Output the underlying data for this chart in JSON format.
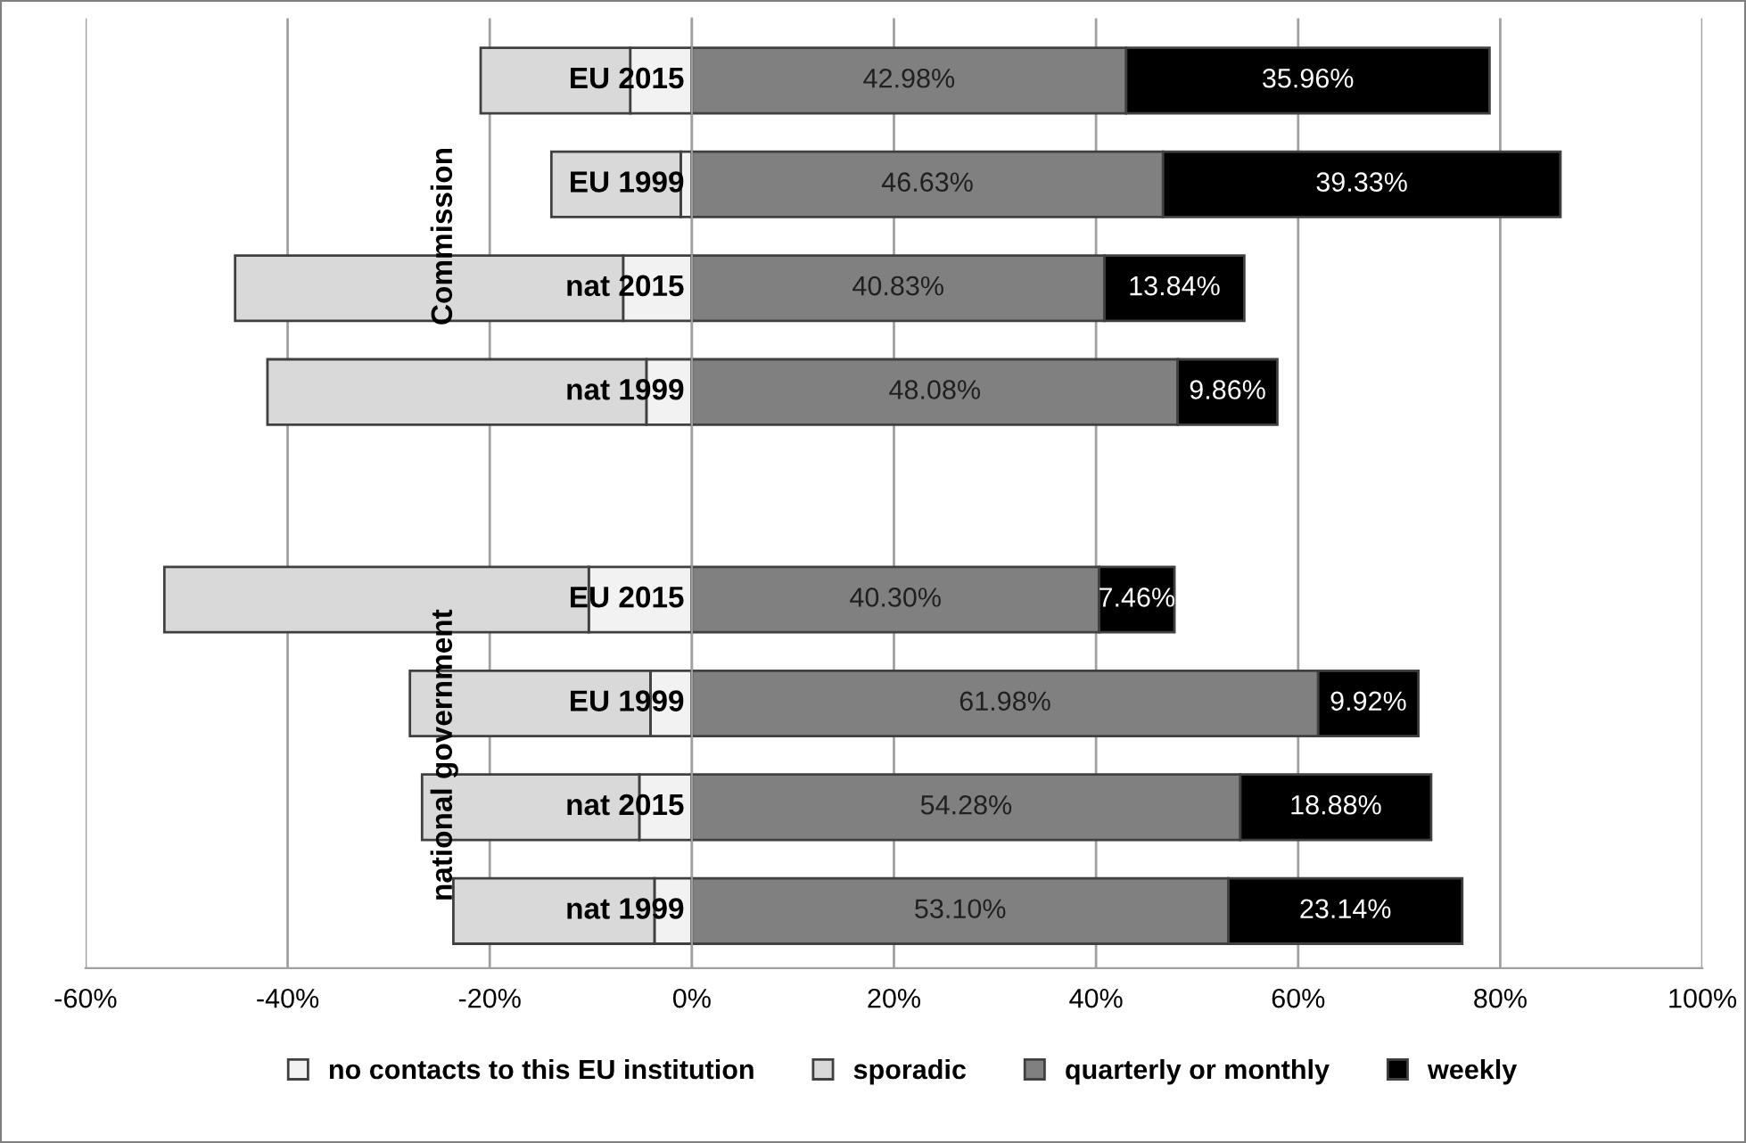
{
  "chart_data": {
    "type": "bar",
    "orientation": "horizontal",
    "stacked": true,
    "categories": [
      "EU 2015",
      "EU 1999",
      "nat 2015",
      "nat 1999",
      null,
      "EU 2015",
      "EU 1999",
      "nat 2015",
      "nat 1999"
    ],
    "series": [
      {
        "name": "no contacts to this EU institution",
        "color": "#f2f2f2",
        "values": [
          -6.1,
          -1.1,
          -6.8,
          -4.5,
          null,
          -10.2,
          -4.1,
          -5.2,
          -3.7
        ]
      },
      {
        "name": "sporadic",
        "color": "#d9d9d9",
        "values": [
          -14.8,
          -12.8,
          -38.4,
          -37.5,
          null,
          -42.0,
          -23.8,
          -21.5,
          -19.9
        ]
      },
      {
        "name": "quarterly or monthly",
        "color": "#808080",
        "values": [
          42.98,
          46.63,
          40.83,
          48.08,
          null,
          40.3,
          61.98,
          54.28,
          53.1
        ],
        "value_labels": [
          "42.98%",
          "46.63%",
          "40.83%",
          "48.08%",
          null,
          "40.30%",
          "61.98%",
          "54.28%",
          "53.10%"
        ]
      },
      {
        "name": "weekly",
        "color": "#000000",
        "values": [
          35.96,
          39.33,
          13.84,
          9.86,
          null,
          7.46,
          9.92,
          18.88,
          23.14
        ],
        "value_labels": [
          "35.96%",
          "39.33%",
          "13.84%",
          "9.86%",
          null,
          "7.46%",
          "9.92%",
          "18.88%",
          "23.14%"
        ]
      }
    ],
    "xlim": [
      -60,
      100
    ],
    "xticks": [
      {
        "value": -60,
        "label": "-60%"
      },
      {
        "value": -40,
        "label": "-40%"
      },
      {
        "value": -20,
        "label": "-20%"
      },
      {
        "value": 0,
        "label": "0%"
      },
      {
        "value": 20,
        "label": "20%"
      },
      {
        "value": 40,
        "label": "40%"
      },
      {
        "value": 60,
        "label": "60%"
      },
      {
        "value": 80,
        "label": "80%"
      },
      {
        "value": 100,
        "label": "100%"
      }
    ],
    "annotations": [
      "Commission",
      "national government"
    ],
    "grid": "x",
    "legend": "bottom"
  }
}
